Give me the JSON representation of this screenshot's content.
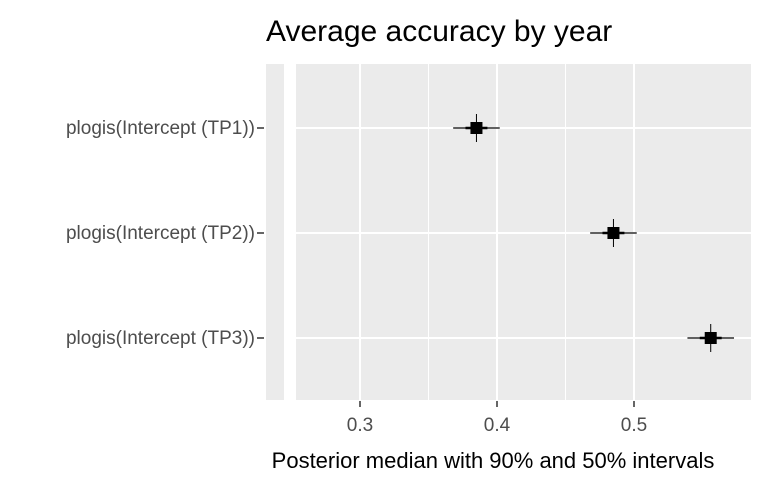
{
  "chart_data": {
    "type": "interval",
    "title": "Average accuracy by year",
    "xlabel": "Posterior median with 90% and 50% intervals",
    "ylabel": "",
    "xlim": [
      0.25,
      0.568
    ],
    "xticks": [
      0.3,
      0.4,
      0.5
    ],
    "xtick_labels": [
      "0.3",
      "0.4",
      "0.5"
    ],
    "grid": true,
    "categories": [
      "plogis(Intercept  (TP1))",
      "plogis(Intercept  (TP2))",
      "plogis(Intercept  (TP3))"
    ],
    "points": [
      {
        "label": "plogis(Intercept  (TP1))",
        "median": 0.385,
        "inner": [
          0.377,
          0.393
        ],
        "outer": [
          0.368,
          0.402
        ]
      },
      {
        "label": "plogis(Intercept  (TP2))",
        "median": 0.485,
        "inner": [
          0.477,
          0.493
        ],
        "outer": [
          0.468,
          0.502
        ]
      },
      {
        "label": "plogis(Intercept  (TP3))",
        "median": 0.556,
        "inner": [
          0.548,
          0.564
        ],
        "outer": [
          0.539,
          0.573
        ]
      }
    ]
  },
  "colors": {
    "panel": "#ebebeb",
    "grid": "#ffffff",
    "point": "#000000",
    "axis_text": "#4d4d4d"
  }
}
